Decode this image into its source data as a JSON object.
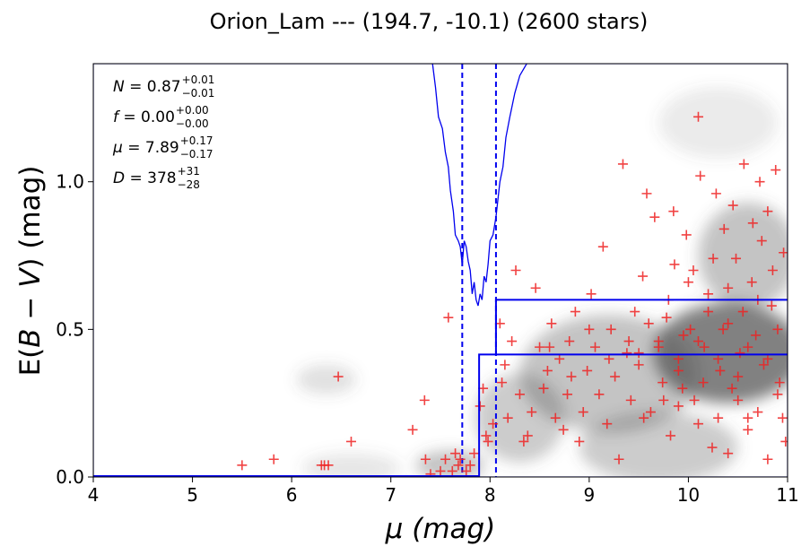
{
  "chart_data": {
    "type": "scatter",
    "title": "Orion_Lam --- (194.7, -10.1) (2600 stars)",
    "xlabel": "μ (mag)",
    "ylabel_prefix": "E(",
    "ylabel_var": "B − V",
    "ylabel_suffix": ") (mag)",
    "xlim": [
      4,
      11
    ],
    "ylim": [
      0,
      1.4
    ],
    "xticks": [
      4,
      5,
      6,
      7,
      8,
      9,
      10,
      11
    ],
    "yticks": [
      0.0,
      0.5,
      1.0
    ],
    "xtick_labels": [
      "4",
      "5",
      "6",
      "7",
      "8",
      "9",
      "10",
      "11"
    ],
    "ytick_labels": [
      "0.0",
      "0.5",
      "1.0"
    ],
    "grid": false,
    "annotations": [
      {
        "sym": "N",
        "value": "0.87",
        "plus": "+0.01",
        "minus": "−0.01"
      },
      {
        "sym": "f",
        "value": "0.00",
        "plus": "+0.00",
        "minus": "−0.00"
      },
      {
        "sym": "μ",
        "value": "7.89",
        "plus": "+0.17",
        "minus": "−0.17"
      },
      {
        "sym": "D",
        "value": "378",
        "plus": "+31",
        "minus": "−28"
      }
    ],
    "colors": {
      "markers": "#ee2222",
      "model": "#0000ee",
      "frame": "#0000cc",
      "density": "#555555"
    },
    "model_step": {
      "x0": 4,
      "x_jump": 7.89,
      "y_before": 0.0,
      "y_after": 0.415
    },
    "upper_step": {
      "x_start": 8.06,
      "y": 0.6
    },
    "distance_bounds": [
      7.72,
      8.06
    ],
    "density_blobs": [
      {
        "x": 10.4,
        "y": 0.42,
        "sx": 0.75,
        "sy": 0.17,
        "a": 0.75
      },
      {
        "x": 9.2,
        "y": 0.35,
        "sx": 0.9,
        "sy": 0.2,
        "a": 0.35
      },
      {
        "x": 10.6,
        "y": 0.75,
        "sx": 0.5,
        "sy": 0.18,
        "a": 0.35
      },
      {
        "x": 9.7,
        "y": 0.1,
        "sx": 0.8,
        "sy": 0.12,
        "a": 0.3
      },
      {
        "x": 8.3,
        "y": 0.2,
        "sx": 0.45,
        "sy": 0.15,
        "a": 0.3
      },
      {
        "x": 7.6,
        "y": 0.04,
        "sx": 0.35,
        "sy": 0.05,
        "a": 0.35
      },
      {
        "x": 6.35,
        "y": 0.33,
        "sx": 0.3,
        "sy": 0.05,
        "a": 0.18
      },
      {
        "x": 6.6,
        "y": 0.03,
        "sx": 0.5,
        "sy": 0.05,
        "a": 0.15
      },
      {
        "x": 10.3,
        "y": 1.2,
        "sx": 0.6,
        "sy": 0.12,
        "a": 0.12
      }
    ],
    "density_curve": [
      [
        7.42,
        1.4
      ],
      [
        7.45,
        1.32
      ],
      [
        7.48,
        1.22
      ],
      [
        7.52,
        1.18
      ],
      [
        7.55,
        1.1
      ],
      [
        7.58,
        1.05
      ],
      [
        7.6,
        0.97
      ],
      [
        7.63,
        0.9
      ],
      [
        7.65,
        0.82
      ],
      [
        7.68,
        0.8
      ],
      [
        7.7,
        0.78
      ],
      [
        7.72,
        0.72
      ],
      [
        7.74,
        0.8
      ],
      [
        7.76,
        0.78
      ],
      [
        7.78,
        0.73
      ],
      [
        7.8,
        0.7
      ],
      [
        7.82,
        0.62
      ],
      [
        7.84,
        0.66
      ],
      [
        7.86,
        0.6
      ],
      [
        7.88,
        0.58
      ],
      [
        7.9,
        0.62
      ],
      [
        7.92,
        0.6
      ],
      [
        7.94,
        0.68
      ],
      [
        7.96,
        0.66
      ],
      [
        7.98,
        0.72
      ],
      [
        8.0,
        0.8
      ],
      [
        8.03,
        0.82
      ],
      [
        8.06,
        0.88
      ],
      [
        8.1,
        1.0
      ],
      [
        8.13,
        1.05
      ],
      [
        8.16,
        1.15
      ],
      [
        8.2,
        1.22
      ],
      [
        8.25,
        1.3
      ],
      [
        8.3,
        1.36
      ],
      [
        8.37,
        1.4
      ]
    ],
    "points": [
      [
        5.5,
        0.04
      ],
      [
        5.82,
        0.06
      ],
      [
        6.3,
        0.04
      ],
      [
        6.33,
        0.04
      ],
      [
        6.37,
        0.04
      ],
      [
        6.47,
        0.34
      ],
      [
        6.6,
        0.12
      ],
      [
        7.22,
        0.16
      ],
      [
        7.34,
        0.26
      ],
      [
        7.35,
        0.06
      ],
      [
        7.4,
        0.01
      ],
      [
        7.5,
        0.02
      ],
      [
        7.55,
        0.06
      ],
      [
        7.58,
        0.54
      ],
      [
        7.62,
        0.02
      ],
      [
        7.65,
        0.08
      ],
      [
        7.68,
        0.04
      ],
      [
        7.7,
        0.06
      ],
      [
        7.76,
        0.02
      ],
      [
        7.8,
        0.04
      ],
      [
        7.84,
        0.08
      ],
      [
        7.9,
        0.24
      ],
      [
        7.93,
        0.3
      ],
      [
        7.96,
        0.14
      ],
      [
        7.98,
        0.12
      ],
      [
        8.03,
        0.18
      ],
      [
        8.1,
        0.52
      ],
      [
        8.12,
        0.32
      ],
      [
        8.15,
        0.38
      ],
      [
        8.18,
        0.2
      ],
      [
        8.22,
        0.46
      ],
      [
        8.26,
        0.7
      ],
      [
        8.3,
        0.28
      ],
      [
        8.34,
        0.12
      ],
      [
        8.38,
        0.14
      ],
      [
        8.42,
        0.22
      ],
      [
        8.46,
        0.64
      ],
      [
        8.5,
        0.44
      ],
      [
        8.54,
        0.3
      ],
      [
        8.58,
        0.36
      ],
      [
        8.62,
        0.52
      ],
      [
        8.66,
        0.2
      ],
      [
        8.7,
        0.4
      ],
      [
        8.74,
        0.16
      ],
      [
        8.78,
        0.28
      ],
      [
        8.82,
        0.34
      ],
      [
        8.86,
        0.56
      ],
      [
        8.9,
        0.12
      ],
      [
        8.94,
        0.22
      ],
      [
        8.98,
        0.36
      ],
      [
        9.02,
        0.62
      ],
      [
        9.06,
        0.44
      ],
      [
        9.1,
        0.28
      ],
      [
        9.14,
        0.78
      ],
      [
        9.18,
        0.18
      ],
      [
        9.22,
        0.5
      ],
      [
        9.26,
        0.34
      ],
      [
        9.3,
        0.06
      ],
      [
        9.34,
        1.06
      ],
      [
        9.38,
        0.42
      ],
      [
        9.42,
        0.26
      ],
      [
        9.46,
        0.56
      ],
      [
        9.5,
        0.38
      ],
      [
        9.54,
        0.68
      ],
      [
        9.58,
        0.96
      ],
      [
        9.62,
        0.22
      ],
      [
        9.66,
        0.88
      ],
      [
        9.7,
        0.46
      ],
      [
        9.74,
        0.32
      ],
      [
        9.78,
        0.54
      ],
      [
        9.82,
        0.14
      ],
      [
        9.86,
        0.72
      ],
      [
        9.9,
        0.4
      ],
      [
        9.94,
        0.3
      ],
      [
        9.98,
        0.82
      ],
      [
        10.02,
        0.5
      ],
      [
        10.06,
        0.26
      ],
      [
        10.1,
        1.22
      ],
      [
        10.12,
        1.02
      ],
      [
        10.16,
        0.44
      ],
      [
        10.2,
        0.62
      ],
      [
        10.24,
        0.1
      ],
      [
        10.28,
        0.96
      ],
      [
        10.32,
        0.36
      ],
      [
        10.36,
        0.84
      ],
      [
        10.4,
        0.52
      ],
      [
        10.44,
        0.3
      ],
      [
        10.48,
        0.74
      ],
      [
        10.52,
        0.42
      ],
      [
        10.56,
        1.06
      ],
      [
        10.6,
        0.2
      ],
      [
        10.64,
        0.66
      ],
      [
        10.68,
        0.48
      ],
      [
        10.72,
        1.0
      ],
      [
        10.76,
        0.38
      ],
      [
        10.8,
        0.9
      ],
      [
        10.84,
        0.58
      ],
      [
        10.88,
        1.04
      ],
      [
        10.92,
        0.32
      ],
      [
        10.96,
        0.76
      ],
      [
        10.98,
        0.12
      ],
      [
        10.74,
        0.8
      ],
      [
        10.5,
        0.34
      ],
      [
        10.3,
        0.4
      ],
      [
        10.1,
        0.46
      ],
      [
        9.9,
        0.36
      ],
      [
        9.7,
        0.44
      ],
      [
        9.5,
        0.42
      ],
      [
        10.6,
        0.44
      ],
      [
        10.8,
        0.4
      ],
      [
        10.9,
        0.5
      ],
      [
        10.7,
        0.6
      ],
      [
        10.4,
        0.64
      ],
      [
        10.2,
        0.56
      ],
      [
        10.0,
        0.66
      ],
      [
        9.8,
        0.6
      ],
      [
        9.6,
        0.52
      ],
      [
        9.4,
        0.46
      ],
      [
        9.2,
        0.4
      ],
      [
        9.0,
        0.5
      ],
      [
        8.8,
        0.46
      ],
      [
        8.6,
        0.44
      ],
      [
        10.5,
        0.26
      ],
      [
        10.3,
        0.2
      ],
      [
        10.1,
        0.18
      ],
      [
        9.9,
        0.24
      ],
      [
        10.7,
        0.22
      ],
      [
        10.9,
        0.28
      ],
      [
        10.6,
        0.16
      ],
      [
        10.4,
        0.08
      ],
      [
        10.8,
        0.06
      ],
      [
        10.95,
        0.2
      ],
      [
        10.85,
        0.7
      ],
      [
        10.65,
        0.86
      ],
      [
        10.45,
        0.92
      ],
      [
        10.25,
        0.74
      ],
      [
        10.05,
        0.7
      ],
      [
        9.85,
        0.9
      ],
      [
        10.55,
        0.56
      ],
      [
        10.35,
        0.5
      ],
      [
        10.15,
        0.32
      ],
      [
        9.95,
        0.48
      ],
      [
        9.75,
        0.26
      ],
      [
        9.55,
        0.2
      ]
    ]
  }
}
